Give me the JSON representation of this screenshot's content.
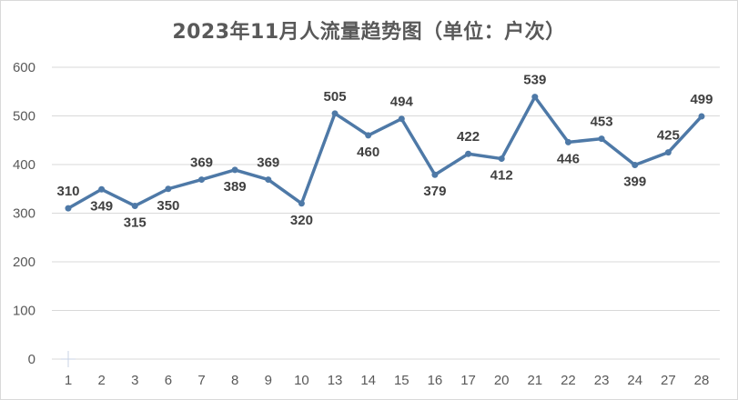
{
  "chart_data": {
    "type": "line",
    "title": "2023年11月人流量趋势图（单位：户次）",
    "xlabel": "",
    "ylabel": "",
    "categories": [
      "1",
      "2",
      "3",
      "6",
      "7",
      "8",
      "9",
      "10",
      "13",
      "14",
      "15",
      "16",
      "17",
      "20",
      "21",
      "22",
      "23",
      "24",
      "27",
      "28"
    ],
    "series": [
      {
        "values": [
          310,
          349,
          315,
          350,
          369,
          389,
          369,
          320,
          505,
          460,
          494,
          379,
          422,
          412,
          539,
          446,
          453,
          399,
          425,
          499
        ],
        "color": "#4e79a7"
      }
    ],
    "ylim": [
      0,
      600
    ],
    "yticks": [
      0,
      100,
      200,
      300,
      400,
      500,
      600
    ],
    "grid": true,
    "legend": "none",
    "data_labels": true
  }
}
